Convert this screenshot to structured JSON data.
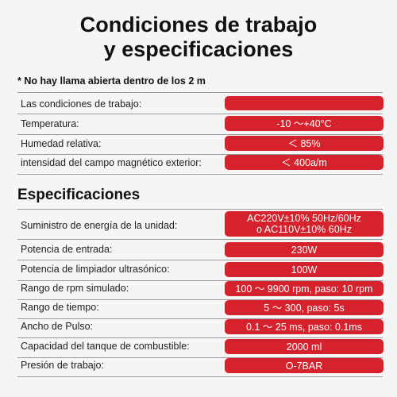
{
  "header": {
    "title_line1": "Condiciones de trabajo",
    "title_line2": "y especificaciones"
  },
  "note": "* No hay llama abierta dentro de los 2 m",
  "working_conditions": [
    {
      "label": "Las condiciones de trabajo:",
      "value": ""
    },
    {
      "label": "Temperatura:",
      "value": "-10 ～+40°C"
    },
    {
      "label": "Humedad relativa:",
      "value": "＜ 85%"
    },
    {
      "label": "intensidad del campo magnético exterior:",
      "value": "＜ 400a/m"
    }
  ],
  "specs_title": "Especificaciones",
  "specifications": [
    {
      "label": "Suministro de energía de la unidad:",
      "value": "AC220V±10% 50Hz/60Hz",
      "value2": "o AC110V±10% 60Hz"
    },
    {
      "label": "Potencia de entrada:",
      "value": "230W"
    },
    {
      "label": "Potencia de limpiador ultrasónico:",
      "value": "100W"
    },
    {
      "label": "Rango de rpm simulado:",
      "value": "100 ～ 9900 rpm, paso: 10 rpm"
    },
    {
      "label": "Rango de tiempo:",
      "value": "5 ～ 300, paso: 5s"
    },
    {
      "label": "Ancho de Pulso:",
      "value": "0.1 ～ 25 ms, paso: 0.1ms"
    },
    {
      "label": "Capacidad del tanque de combustible:",
      "value": "2000 ml"
    },
    {
      "label": "Presión de trabajo:",
      "value": "O-7BAR"
    }
  ],
  "colors": {
    "accent": "#d6222c",
    "background": "#f5f5f5"
  }
}
